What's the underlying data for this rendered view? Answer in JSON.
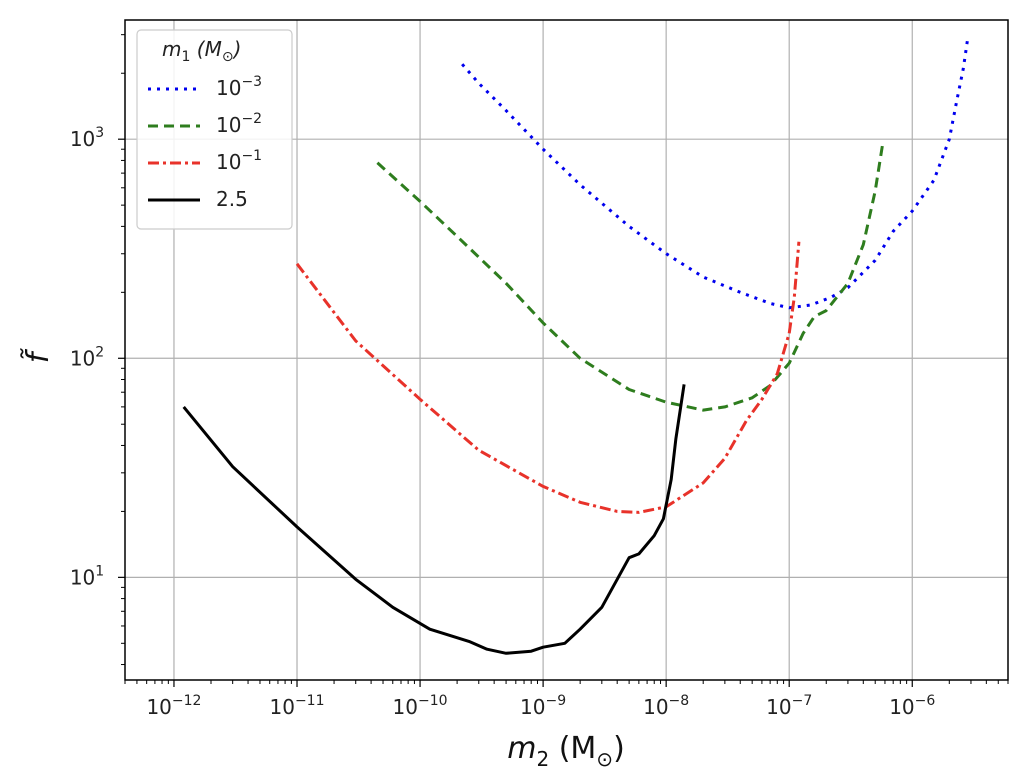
{
  "chart_data": {
    "type": "line",
    "xscale": "log",
    "yscale": "log",
    "xlim": [
      4e-13,
      6e-06
    ],
    "ylim": [
      3.4,
      3500
    ],
    "grid": true,
    "legend_position": "top-left",
    "xlabel": {
      "base": "m",
      "sub": "2",
      "rest": " (M",
      "sub2": "⊙",
      "close": ")"
    },
    "ylabel": "f̃",
    "x_ticks": [
      {
        "value": 1e-12,
        "base": "10",
        "exp": "−12"
      },
      {
        "value": 1e-11,
        "base": "10",
        "exp": "−11"
      },
      {
        "value": 1e-10,
        "base": "10",
        "exp": "−10"
      },
      {
        "value": 1e-09,
        "base": "10",
        "exp": "−9"
      },
      {
        "value": 1e-08,
        "base": "10",
        "exp": "−8"
      },
      {
        "value": 1e-07,
        "base": "10",
        "exp": "−7"
      },
      {
        "value": 1e-06,
        "base": "10",
        "exp": "−6"
      }
    ],
    "y_ticks": [
      {
        "value": 10,
        "base": "10",
        "exp": "1"
      },
      {
        "value": 100,
        "base": "10",
        "exp": "2"
      },
      {
        "value": 1000,
        "base": "10",
        "exp": "3"
      }
    ],
    "legend_title": {
      "base": "m",
      "sub": "1",
      "rest": " (M",
      "sub2": "⊙",
      "close": ")"
    },
    "series": [
      {
        "name": "10^-3",
        "label_base": "10",
        "label_exp": "−3",
        "color": "#0000ee",
        "dash": "3,6",
        "points": [
          [
            2.2e-10,
            2200
          ],
          [
            3e-10,
            1800
          ],
          [
            5e-10,
            1350
          ],
          [
            1e-09,
            900
          ],
          [
            2e-09,
            620
          ],
          [
            5e-09,
            400
          ],
          [
            1e-08,
            300
          ],
          [
            2e-08,
            235
          ],
          [
            4e-08,
            200
          ],
          [
            7e-08,
            178
          ],
          [
            1e-07,
            170
          ],
          [
            1.5e-07,
            175
          ],
          [
            2.2e-07,
            190
          ],
          [
            3e-07,
            210
          ],
          [
            5e-07,
            280
          ],
          [
            7e-07,
            380
          ],
          [
            1e-06,
            470
          ],
          [
            1.5e-06,
            650
          ],
          [
            2e-06,
            1000
          ],
          [
            2.3e-06,
            1500
          ],
          [
            2.6e-06,
            2100
          ],
          [
            2.8e-06,
            2800
          ]
        ]
      },
      {
        "name": "10^-2",
        "label_base": "10",
        "label_exp": "−2",
        "color": "#2e7d1e",
        "dash": "10,6",
        "points": [
          [
            4.5e-11,
            780
          ],
          [
            1e-10,
            520
          ],
          [
            2e-10,
            360
          ],
          [
            5e-10,
            220
          ],
          [
            1e-09,
            145
          ],
          [
            2e-09,
            100
          ],
          [
            5e-09,
            72
          ],
          [
            1e-08,
            63
          ],
          [
            2e-08,
            58
          ],
          [
            3e-08,
            60
          ],
          [
            5e-08,
            66
          ],
          [
            7e-08,
            75
          ],
          [
            1e-07,
            95
          ],
          [
            1.3e-07,
            130
          ],
          [
            1.6e-07,
            155
          ],
          [
            2e-07,
            165
          ],
          [
            3e-07,
            220
          ],
          [
            4e-07,
            330
          ],
          [
            5e-07,
            580
          ],
          [
            5.8e-07,
            980
          ]
        ]
      },
      {
        "name": "10^-1",
        "label_base": "10",
        "label_exp": "−1",
        "color": "#e8322a",
        "dash": "11,4,3,4",
        "points": [
          [
            1e-11,
            270
          ],
          [
            3e-11,
            120
          ],
          [
            1e-10,
            65
          ],
          [
            3e-10,
            38
          ],
          [
            1e-09,
            26
          ],
          [
            2e-09,
            22
          ],
          [
            4e-09,
            20
          ],
          [
            6e-09,
            19.8
          ],
          [
            1e-08,
            21
          ],
          [
            2e-08,
            27
          ],
          [
            3e-08,
            35
          ],
          [
            4.5e-08,
            52
          ],
          [
            6e-08,
            65
          ],
          [
            8e-08,
            85
          ],
          [
            1e-07,
            130
          ],
          [
            1.1e-07,
            190
          ],
          [
            1.2e-07,
            340
          ]
        ]
      },
      {
        "name": "2.5",
        "label_base": "2.5",
        "label_exp": "",
        "color": "#000000",
        "dash": "",
        "points": [
          [
            1.2e-12,
            60
          ],
          [
            3e-12,
            32
          ],
          [
            1e-11,
            17
          ],
          [
            3e-11,
            9.8
          ],
          [
            6e-11,
            7.3
          ],
          [
            1.2e-10,
            5.8
          ],
          [
            2.5e-10,
            5.1
          ],
          [
            3.5e-10,
            4.7
          ],
          [
            5e-10,
            4.5
          ],
          [
            8e-10,
            4.6
          ],
          [
            1e-09,
            4.8
          ],
          [
            1.5e-09,
            5
          ],
          [
            2e-09,
            5.8
          ],
          [
            3e-09,
            7.3
          ],
          [
            4e-09,
            9.8
          ],
          [
            5e-09,
            12.3
          ],
          [
            6e-09,
            12.8
          ],
          [
            8e-09,
            15.5
          ],
          [
            9.5e-09,
            18.5
          ],
          [
            1.1e-08,
            28
          ],
          [
            1.2e-08,
            43
          ],
          [
            1.4e-08,
            76
          ]
        ]
      }
    ]
  }
}
